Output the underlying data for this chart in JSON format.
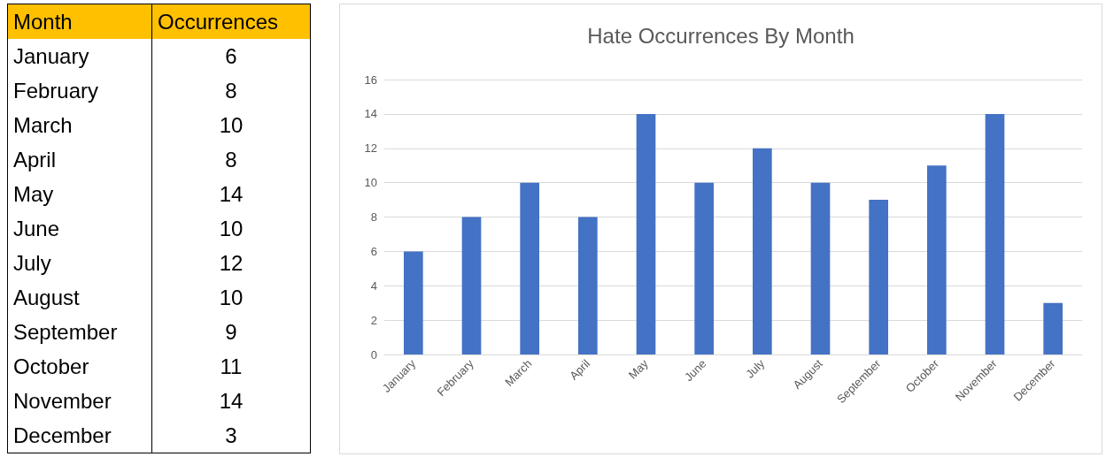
{
  "chart_data": [
    {
      "type": "other",
      "annotations": [
        "Month",
        "Occurrences"
      ],
      "categories": [
        "January",
        "February",
        "March",
        "April",
        "May",
        "June",
        "July",
        "August",
        "September",
        "October",
        "November",
        "December"
      ],
      "values": [
        6,
        8,
        10,
        8,
        14,
        10,
        12,
        10,
        9,
        11,
        14,
        3
      ],
      "value_labels": [
        "6",
        "8",
        "10",
        "8",
        "14",
        "10",
        "12",
        "10",
        "9",
        "11",
        "14",
        "3"
      ]
    },
    {
      "type": "bar",
      "title": "Hate Occurrences By Month",
      "categories": [
        "January",
        "February",
        "March",
        "April",
        "May",
        "June",
        "July",
        "August",
        "September",
        "October",
        "November",
        "December"
      ],
      "values": [
        6,
        8,
        10,
        8,
        14,
        10,
        12,
        10,
        9,
        11,
        14,
        3
      ],
      "color": "#4472c4",
      "ylim": [
        0,
        16
      ],
      "yticks": [
        0,
        2,
        4,
        6,
        8,
        10,
        12,
        14,
        16
      ],
      "grid": "y"
    }
  ]
}
